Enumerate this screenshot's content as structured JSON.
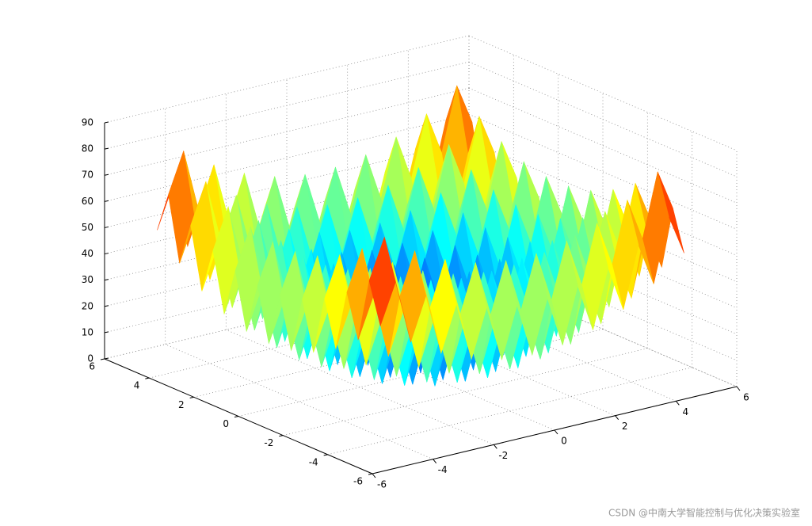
{
  "chart_data": {
    "type": "surface",
    "x": [
      -5,
      -4.5,
      -4,
      -3.5,
      -3,
      -2.5,
      -2,
      -1.5,
      -1,
      -0.5,
      0,
      0.5,
      1,
      1.5,
      2,
      2.5,
      3,
      3.5,
      4,
      4.5,
      5
    ],
    "y": [
      -5,
      -4.5,
      -4,
      -3.5,
      -3,
      -2.5,
      -2,
      -1.5,
      -1,
      -0.5,
      0,
      0.5,
      1,
      1.5,
      2,
      2.5,
      3,
      3.5,
      4,
      4.5,
      5
    ],
    "z": [
      [
        50,
        65.25,
        41,
        57.25,
        34,
        51.25,
        29,
        47.25,
        26,
        45.25,
        25,
        45.25,
        26,
        47.25,
        29,
        51.25,
        34,
        57.25,
        41,
        65.25,
        50
      ],
      [
        65.25,
        80.5,
        56.25,
        72.5,
        49.25,
        66.5,
        44.25,
        62.5,
        41.25,
        60.5,
        40.25,
        60.5,
        41.25,
        62.5,
        44.25,
        66.5,
        49.25,
        72.5,
        56.25,
        80.5,
        65.25
      ],
      [
        41,
        56.25,
        32,
        48.25,
        25,
        42.25,
        20,
        38.25,
        17,
        36.25,
        16,
        36.25,
        17,
        38.25,
        20,
        42.25,
        25,
        48.25,
        32,
        56.25,
        41
      ],
      [
        57.25,
        72.5,
        48.25,
        64.5,
        41.25,
        58.5,
        36.25,
        54.5,
        33.25,
        52.5,
        32.25,
        52.5,
        33.25,
        54.5,
        36.25,
        58.5,
        41.25,
        64.5,
        48.25,
        72.5,
        57.25
      ],
      [
        34,
        49.25,
        25,
        41.25,
        18,
        35.25,
        13,
        31.25,
        10,
        29.25,
        9,
        29.25,
        10,
        31.25,
        13,
        35.25,
        18,
        41.25,
        25,
        49.25,
        34
      ],
      [
        51.25,
        66.5,
        42.25,
        58.5,
        35.25,
        52.5,
        30.25,
        48.5,
        27.25,
        46.5,
        26.25,
        46.5,
        27.25,
        48.5,
        30.25,
        52.5,
        35.25,
        58.5,
        42.25,
        66.5,
        51.25
      ],
      [
        29,
        44.25,
        20,
        36.25,
        13,
        30.25,
        8,
        26.25,
        5,
        24.25,
        4,
        24.25,
        5,
        26.25,
        8,
        30.25,
        13,
        36.25,
        20,
        44.25,
        29
      ],
      [
        47.25,
        62.5,
        38.25,
        54.5,
        31.25,
        48.5,
        26.25,
        44.5,
        23.25,
        42.5,
        22.25,
        42.5,
        23.25,
        44.5,
        26.25,
        48.5,
        31.25,
        54.5,
        38.25,
        62.5,
        47.25
      ],
      [
        26,
        41.25,
        17,
        33.25,
        10,
        27.25,
        5,
        23.25,
        2,
        21.25,
        1,
        21.25,
        2,
        23.25,
        5,
        27.25,
        10,
        33.25,
        17,
        41.25,
        26
      ],
      [
        45.25,
        60.5,
        36.25,
        52.5,
        29.25,
        46.5,
        24.25,
        42.5,
        21.25,
        40.5,
        20.25,
        40.5,
        21.25,
        42.5,
        24.25,
        46.5,
        29.25,
        52.5,
        36.25,
        60.5,
        45.25
      ],
      [
        25,
        40.25,
        16,
        32.25,
        9,
        26.25,
        4,
        22.25,
        1,
        20.25,
        0,
        20.25,
        1,
        22.25,
        4,
        26.25,
        9,
        32.25,
        16,
        40.25,
        25
      ],
      [
        45.25,
        60.5,
        36.25,
        52.5,
        29.25,
        46.5,
        24.25,
        42.5,
        21.25,
        40.5,
        20.25,
        40.5,
        21.25,
        42.5,
        24.25,
        46.5,
        29.25,
        52.5,
        36.25,
        60.5,
        45.25
      ],
      [
        26,
        41.25,
        17,
        33.25,
        10,
        27.25,
        5,
        23.25,
        2,
        21.25,
        1,
        21.25,
        2,
        23.25,
        5,
        27.25,
        10,
        33.25,
        17,
        41.25,
        26
      ],
      [
        47.25,
        62.5,
        38.25,
        54.5,
        31.25,
        48.5,
        26.25,
        44.5,
        23.25,
        42.5,
        22.25,
        42.5,
        23.25,
        44.5,
        26.25,
        48.5,
        31.25,
        54.5,
        38.25,
        62.5,
        47.25
      ],
      [
        29,
        44.25,
        20,
        36.25,
        13,
        30.25,
        8,
        26.25,
        5,
        24.25,
        4,
        24.25,
        5,
        26.25,
        8,
        30.25,
        13,
        36.25,
        20,
        44.25,
        29
      ],
      [
        51.25,
        66.5,
        42.25,
        58.5,
        35.25,
        52.5,
        30.25,
        48.5,
        27.25,
        46.5,
        26.25,
        46.5,
        27.25,
        48.5,
        30.25,
        52.5,
        35.25,
        58.5,
        42.25,
        66.5,
        51.25
      ],
      [
        34,
        49.25,
        25,
        41.25,
        18,
        35.25,
        13,
        31.25,
        10,
        29.25,
        9,
        29.25,
        10,
        31.25,
        13,
        35.25,
        18,
        41.25,
        25,
        49.25,
        34
      ],
      [
        57.25,
        72.5,
        48.25,
        64.5,
        41.25,
        58.5,
        36.25,
        54.5,
        33.25,
        52.5,
        32.25,
        52.5,
        33.25,
        54.5,
        36.25,
        58.5,
        41.25,
        64.5,
        48.25,
        72.5,
        57.25
      ],
      [
        41,
        56.25,
        32,
        48.25,
        25,
        42.25,
        20,
        38.25,
        17,
        36.25,
        16,
        36.25,
        17,
        38.25,
        20,
        42.25,
        25,
        48.25,
        32,
        56.25,
        41
      ],
      [
        65.25,
        80.5,
        56.25,
        72.5,
        49.25,
        66.5,
        44.25,
        62.5,
        41.25,
        60.5,
        40.25,
        60.5,
        41.25,
        62.5,
        44.25,
        66.5,
        49.25,
        72.5,
        56.25,
        80.5,
        65.25
      ],
      [
        50,
        65.25,
        41,
        57.25,
        34,
        51.25,
        29,
        47.25,
        26,
        45.25,
        25,
        45.25,
        26,
        47.25,
        29,
        51.25,
        34,
        57.25,
        41,
        65.25,
        50
      ]
    ],
    "xlim": [
      -6,
      6
    ],
    "ylim": [
      -6,
      6
    ],
    "zlim": [
      0,
      90
    ],
    "xticks": [
      -6,
      -4,
      -2,
      0,
      2,
      4,
      6
    ],
    "yticks": [
      -6,
      -4,
      -2,
      0,
      2,
      4,
      6
    ],
    "zticks": [
      0,
      10,
      20,
      30,
      40,
      50,
      60,
      70,
      80,
      90
    ],
    "grid": true,
    "colormap": "jet"
  },
  "watermark": "CSDN @中南大学智能控制与优化决策实验室"
}
